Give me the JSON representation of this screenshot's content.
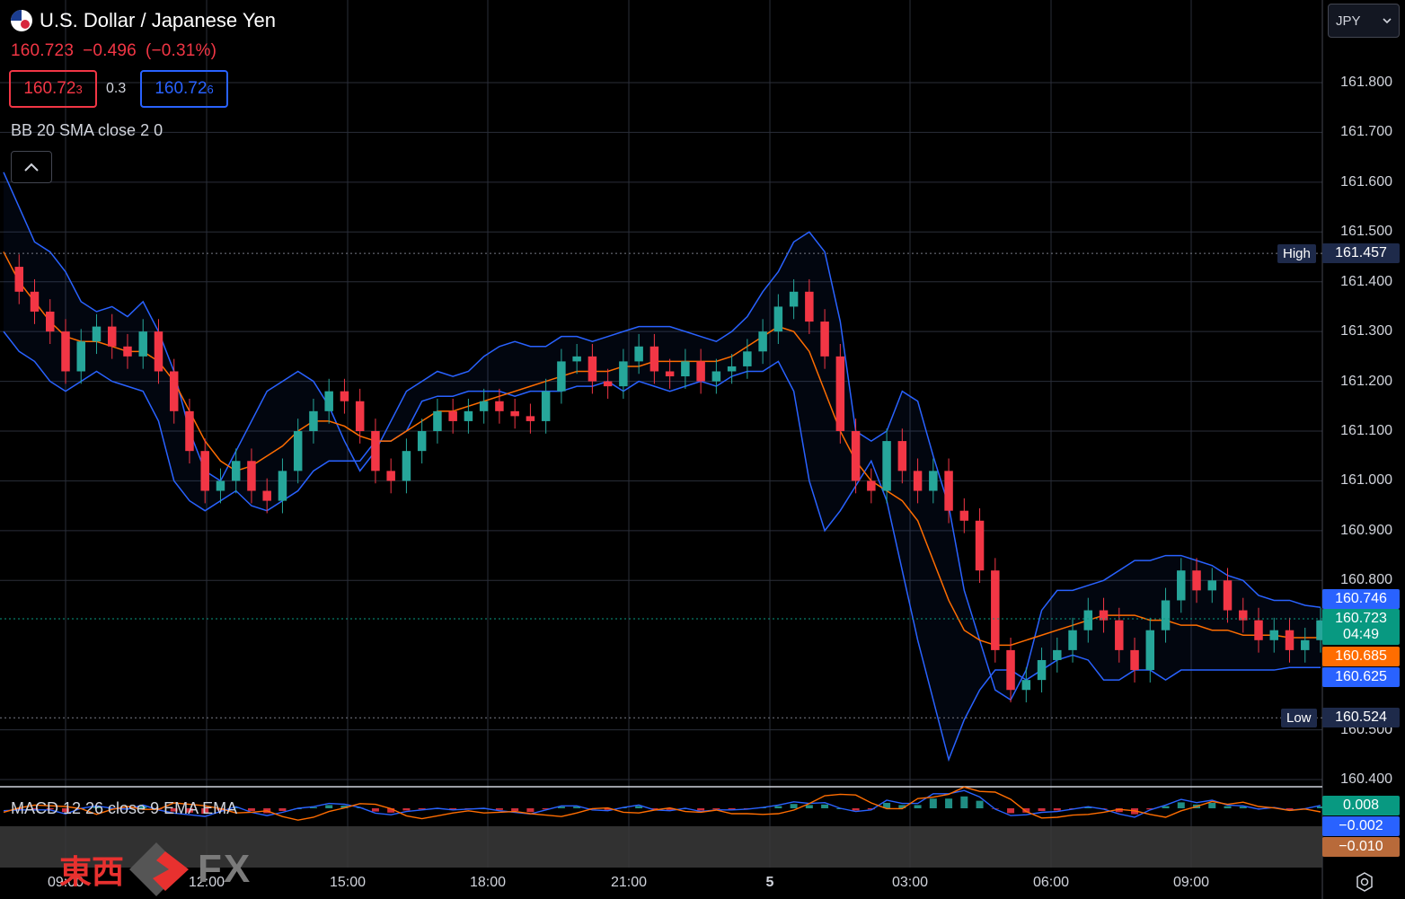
{
  "header": {
    "symbol_title": "U.S. Dollar / Japanese Yen",
    "last_price": "160.723",
    "change": "−0.496",
    "change_pct": "(−0.31%)",
    "bid_main": "160.72",
    "bid_sup": "3",
    "ask_main": "160.72",
    "ask_sup": "6",
    "spread": "0.3",
    "indicator_bb": "BB 20 SMA close 2 0",
    "collapse_icon": "chevron-up-icon"
  },
  "currency_select": {
    "value": "JPY"
  },
  "price_axis": {
    "labels": [
      "161.800",
      "161.700",
      "161.600",
      "161.500",
      "161.400",
      "161.300",
      "161.200",
      "161.100",
      "161.000",
      "160.900",
      "160.800",
      "160.500",
      "160.400"
    ],
    "high_word": "High",
    "high_value": "161.457",
    "low_word": "Low",
    "low_value": "160.524",
    "upper_band": "160.746",
    "current": "160.723",
    "countdown": "04:49",
    "basis": "160.685",
    "lower_band": "160.625"
  },
  "macd": {
    "label": "MACD 12 26 close 9 EMA EMA",
    "histogram_value": "0.008",
    "macd_value": "−0.002",
    "signal_value": "−0.010"
  },
  "time_axis": {
    "labels": [
      "09:00",
      "12:00",
      "15:00",
      "18:00",
      "21:00",
      "5",
      "03:00",
      "06:00",
      "09:00"
    ]
  },
  "logo": {
    "jp_text": "東西",
    "fx_text": "FX"
  },
  "colors": {
    "up": "#26a69a",
    "down": "#f23645",
    "band": "#2962ff",
    "basis": "#ff6d00",
    "high_low_tag": "#1e2a4a"
  },
  "chart_data": {
    "type": "candlestick",
    "title": "U.S. Dollar / Japanese Yen",
    "ylim": [
      160.4,
      161.85
    ],
    "y_ticks": [
      160.4,
      160.5,
      160.8,
      160.9,
      161.0,
      161.1,
      161.2,
      161.3,
      161.4,
      161.5,
      161.6,
      161.7,
      161.8
    ],
    "x_ticks": [
      "09:00",
      "12:00",
      "15:00",
      "18:00",
      "21:00",
      "5",
      "03:00",
      "06:00",
      "09:00"
    ],
    "close_series": [
      161.43,
      161.38,
      161.34,
      161.3,
      161.22,
      161.28,
      161.31,
      161.27,
      161.25,
      161.3,
      161.22,
      161.14,
      161.06,
      160.98,
      161.0,
      161.04,
      160.98,
      160.96,
      161.02,
      161.1,
      161.14,
      161.18,
      161.16,
      161.1,
      161.02,
      161.0,
      161.06,
      161.1,
      161.14,
      161.12,
      161.14,
      161.16,
      161.14,
      161.13,
      161.12,
      161.18,
      161.24,
      161.25,
      161.2,
      161.19,
      161.24,
      161.27,
      161.22,
      161.21,
      161.24,
      161.2,
      161.22,
      161.23,
      161.26,
      161.3,
      161.35,
      161.38,
      161.32,
      161.25,
      161.1,
      161.0,
      160.98,
      161.08,
      161.02,
      160.98,
      161.02,
      160.94,
      160.92,
      160.82,
      160.66,
      160.58,
      160.6,
      160.64,
      160.66,
      160.7,
      160.74,
      160.72,
      160.66,
      160.62,
      160.7,
      160.76,
      160.82,
      160.78,
      160.8,
      160.74,
      160.72,
      160.68,
      160.7,
      160.66,
      160.68,
      160.72
    ],
    "bb_upper": [
      161.62,
      161.55,
      161.48,
      161.46,
      161.42,
      161.36,
      161.34,
      161.35,
      161.33,
      161.36,
      161.3,
      161.22,
      161.1,
      161.02,
      161.0,
      161.06,
      161.12,
      161.18,
      161.2,
      161.22,
      161.2,
      161.15,
      161.08,
      161.02,
      161.06,
      161.12,
      161.18,
      161.2,
      161.22,
      161.21,
      161.22,
      161.25,
      161.27,
      161.28,
      161.27,
      161.27,
      161.29,
      161.29,
      161.28,
      161.29,
      161.3,
      161.31,
      161.31,
      161.31,
      161.3,
      161.29,
      161.28,
      161.3,
      161.33,
      161.38,
      161.42,
      161.48,
      161.5,
      161.46,
      161.32,
      161.1,
      161.08,
      161.1,
      161.18,
      161.16,
      161.05,
      160.95,
      160.78,
      160.68,
      160.58,
      160.56,
      160.62,
      160.74,
      160.78,
      160.78,
      160.79,
      160.8,
      160.82,
      160.84,
      160.84,
      160.85,
      160.85,
      160.84,
      160.83,
      160.81,
      160.8,
      160.77,
      160.76,
      160.76,
      160.75,
      160.746
    ],
    "bb_basis": [
      161.46,
      161.4,
      161.36,
      161.32,
      161.29,
      161.28,
      161.28,
      161.27,
      161.26,
      161.26,
      161.24,
      161.2,
      161.14,
      161.08,
      161.04,
      161.02,
      161.03,
      161.05,
      161.07,
      161.1,
      161.12,
      161.12,
      161.11,
      161.09,
      161.08,
      161.08,
      161.1,
      161.12,
      161.14,
      161.14,
      161.15,
      161.16,
      161.17,
      161.18,
      161.19,
      161.2,
      161.21,
      161.22,
      161.22,
      161.22,
      161.23,
      161.23,
      161.24,
      161.24,
      161.24,
      161.24,
      161.24,
      161.25,
      161.27,
      161.29,
      161.31,
      161.3,
      161.26,
      161.18,
      161.1,
      161.04,
      161.0,
      160.98,
      160.96,
      160.92,
      160.84,
      160.76,
      160.7,
      160.68,
      160.67,
      160.67,
      160.68,
      160.69,
      160.7,
      160.71,
      160.72,
      160.73,
      160.73,
      160.73,
      160.72,
      160.72,
      160.71,
      160.71,
      160.7,
      160.7,
      160.69,
      160.69,
      160.69,
      160.685,
      160.685,
      160.685
    ],
    "bb_lower": [
      161.3,
      161.26,
      161.24,
      161.2,
      161.18,
      161.2,
      161.22,
      161.2,
      161.19,
      161.18,
      161.12,
      161.0,
      160.96,
      160.94,
      160.96,
      160.98,
      160.95,
      160.94,
      160.96,
      160.98,
      161.02,
      161.04,
      161.04,
      161.04,
      161.08,
      161.08,
      161.1,
      161.16,
      161.17,
      161.17,
      161.18,
      161.18,
      161.18,
      161.17,
      161.18,
      161.18,
      161.18,
      161.19,
      161.19,
      161.2,
      161.18,
      161.2,
      161.19,
      161.18,
      161.19,
      161.2,
      161.19,
      161.21,
      161.22,
      161.22,
      161.24,
      161.18,
      161.0,
      160.9,
      160.94,
      160.99,
      161.04,
      160.96,
      160.82,
      160.68,
      160.56,
      160.44,
      160.52,
      160.58,
      160.62,
      160.62,
      160.6,
      160.62,
      160.64,
      160.65,
      160.64,
      160.6,
      160.6,
      160.62,
      160.62,
      160.6,
      160.62,
      160.62,
      160.62,
      160.62,
      160.62,
      160.62,
      160.62,
      160.625,
      160.625,
      160.625
    ],
    "high": 161.457,
    "low": 160.524,
    "last": 160.723
  }
}
